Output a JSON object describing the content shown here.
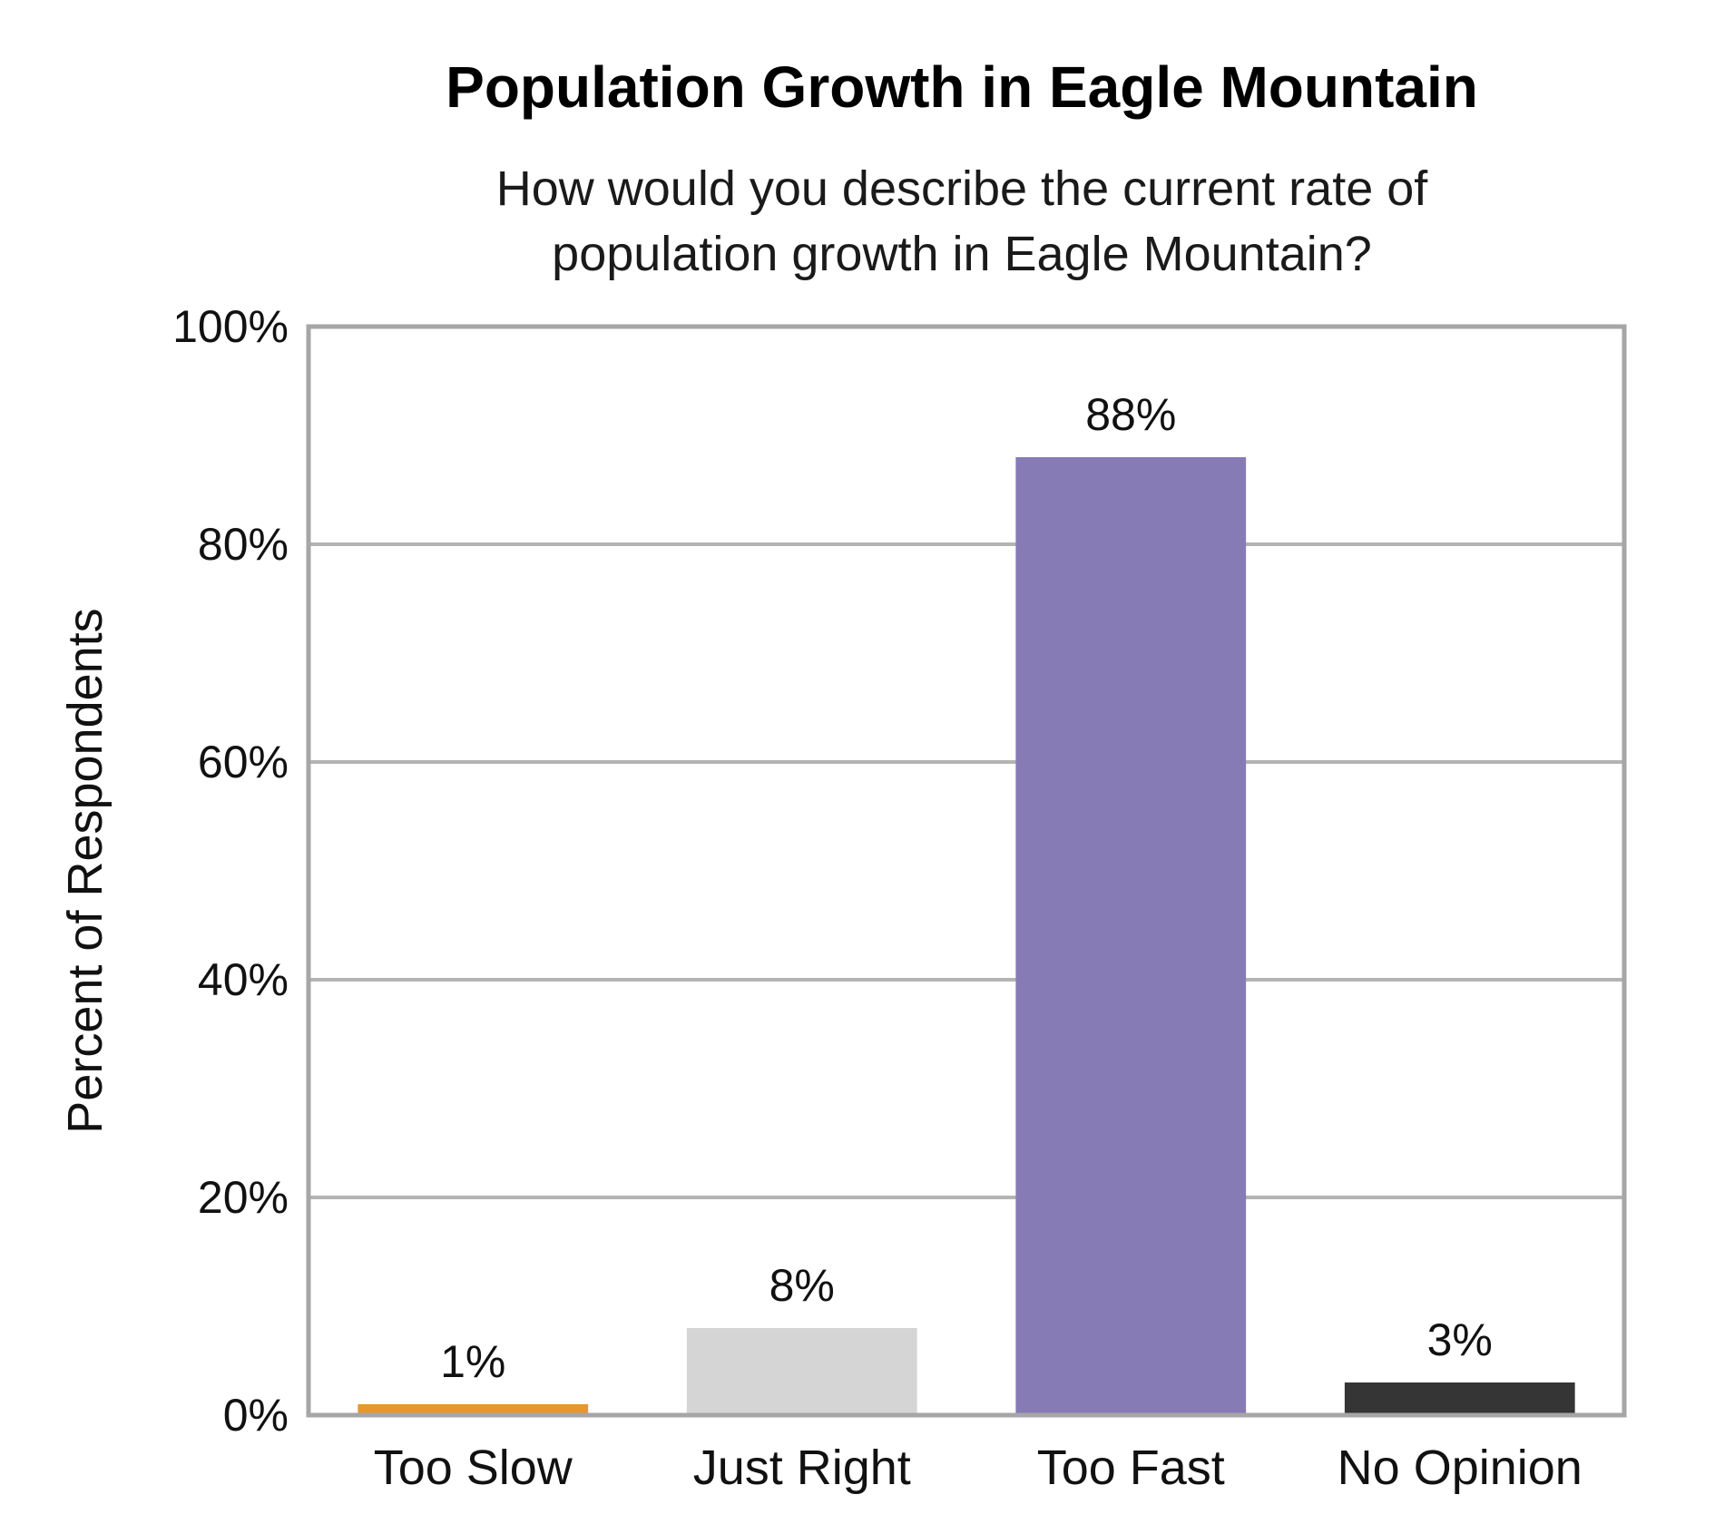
{
  "chart_data": {
    "type": "bar",
    "title": "Population Growth in Eagle Mountain",
    "subtitle_lines": [
      "How would you describe the current rate of",
      "population growth in Eagle Mountain?"
    ],
    "xlabel": "",
    "ylabel": "Percent of Respondents",
    "categories": [
      "Too Slow",
      "Just Right",
      "Too Fast",
      "No Opinion"
    ],
    "values": [
      1,
      8,
      88,
      3
    ],
    "data_labels": [
      "1%",
      "8%",
      "88%",
      "3%"
    ],
    "bar_colors": [
      "#e8962e",
      "#d5d5d5",
      "#877bb5",
      "#353535"
    ],
    "ylim": [
      0,
      100
    ],
    "yticks": [
      0,
      20,
      40,
      60,
      80,
      100
    ],
    "ytick_labels": [
      "0%",
      "20%",
      "40%",
      "60%",
      "80%",
      "100%"
    ],
    "grid": true,
    "grid_color": "#b3b3b3",
    "frame_color": "#a6a6a6",
    "legend": "none"
  }
}
